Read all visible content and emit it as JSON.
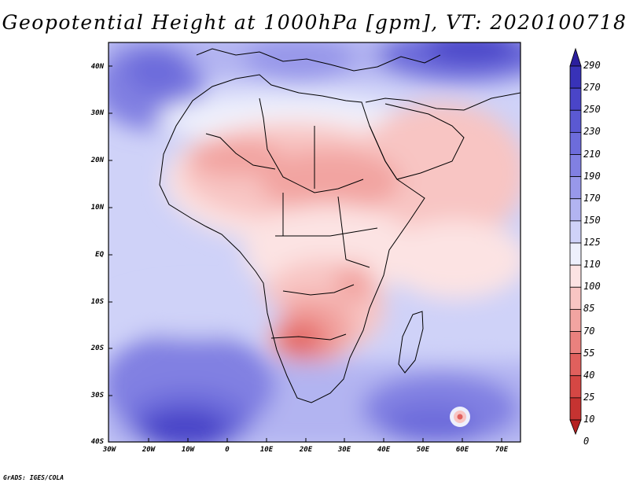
{
  "title": "Geopotential Height at 1000hPa [gpm], VT: 2020100718",
  "credit": "GrADS: IGES/COLA",
  "map": {
    "variable": "Geopotential Height",
    "level": "1000hPa",
    "units": "gpm",
    "valid_time": "2020100718",
    "region": "Africa",
    "lat_labels": [
      "40N",
      "30N",
      "20N",
      "10N",
      "EQ",
      "10S",
      "20S",
      "30S",
      "40S"
    ],
    "lon_labels": [
      "30W",
      "20W",
      "10W",
      "0",
      "10E",
      "20E",
      "30E",
      "40E",
      "50E",
      "60E",
      "70E"
    ],
    "colorbar": {
      "levels": [
        "290",
        "270",
        "250",
        "230",
        "210",
        "190",
        "170",
        "150",
        "125",
        "110",
        "100",
        "85",
        "70",
        "55",
        "40",
        "25",
        "10",
        "0"
      ],
      "colors": [
        "#2b1f9e",
        "#3832b8",
        "#4a45c8",
        "#5b59d2",
        "#6d6cdb",
        "#8180e2",
        "#9898ea",
        "#b2b4f1",
        "#cfd2f8",
        "#eef0fc",
        "#fce3e3",
        "#f8c5c3",
        "#f2a4a1",
        "#ea817e",
        "#e0605d",
        "#d54744",
        "#c63331",
        "#b52222"
      ]
    }
  }
}
